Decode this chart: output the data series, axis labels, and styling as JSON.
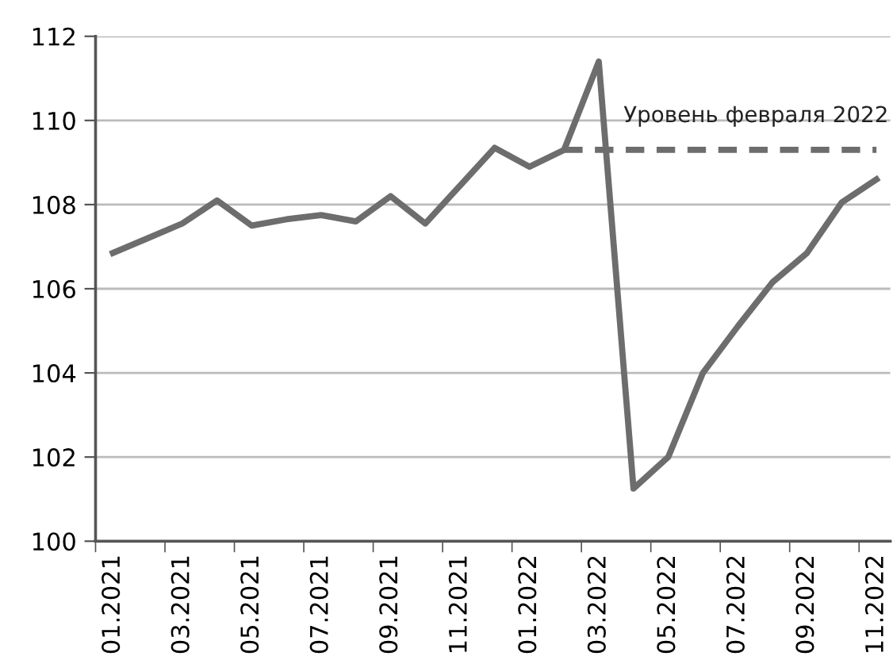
{
  "chart_data": {
    "type": "line",
    "categories": [
      "01.2021",
      null,
      "03.2021",
      null,
      "05.2021",
      null,
      "07.2021",
      null,
      "09.2021",
      null,
      "11.2021",
      null,
      "01.2022",
      null,
      "03.2022",
      null,
      "05.2022",
      null,
      "07.2022",
      null,
      "09.2022",
      null,
      "11.2022"
    ],
    "series": [
      {
        "color": "#6d6d6d",
        "line_style": "solid",
        "values": [
          106.85,
          107.2,
          107.55,
          108.1,
          107.5,
          107.65,
          107.75,
          107.6,
          108.2,
          107.55,
          108.45,
          109.35,
          108.9,
          109.3,
          111.4,
          101.25,
          102.0,
          104.0,
          105.1,
          106.15,
          106.85,
          108.05,
          108.6
        ]
      },
      {
        "name": "Уровень февраля 2022",
        "color": "#6d6d6d",
        "line_style": "dashed",
        "values": [
          null,
          null,
          null,
          null,
          null,
          null,
          null,
          null,
          null,
          null,
          null,
          null,
          null,
          109.3,
          109.3,
          109.3,
          109.3,
          109.3,
          109.3,
          109.3,
          109.3,
          109.3,
          109.3
        ]
      }
    ],
    "ylim": [
      100,
      112
    ],
    "yticks": [
      100,
      102,
      104,
      106,
      108,
      110,
      112
    ],
    "grid": "y",
    "legend": false,
    "marker": "none"
  }
}
